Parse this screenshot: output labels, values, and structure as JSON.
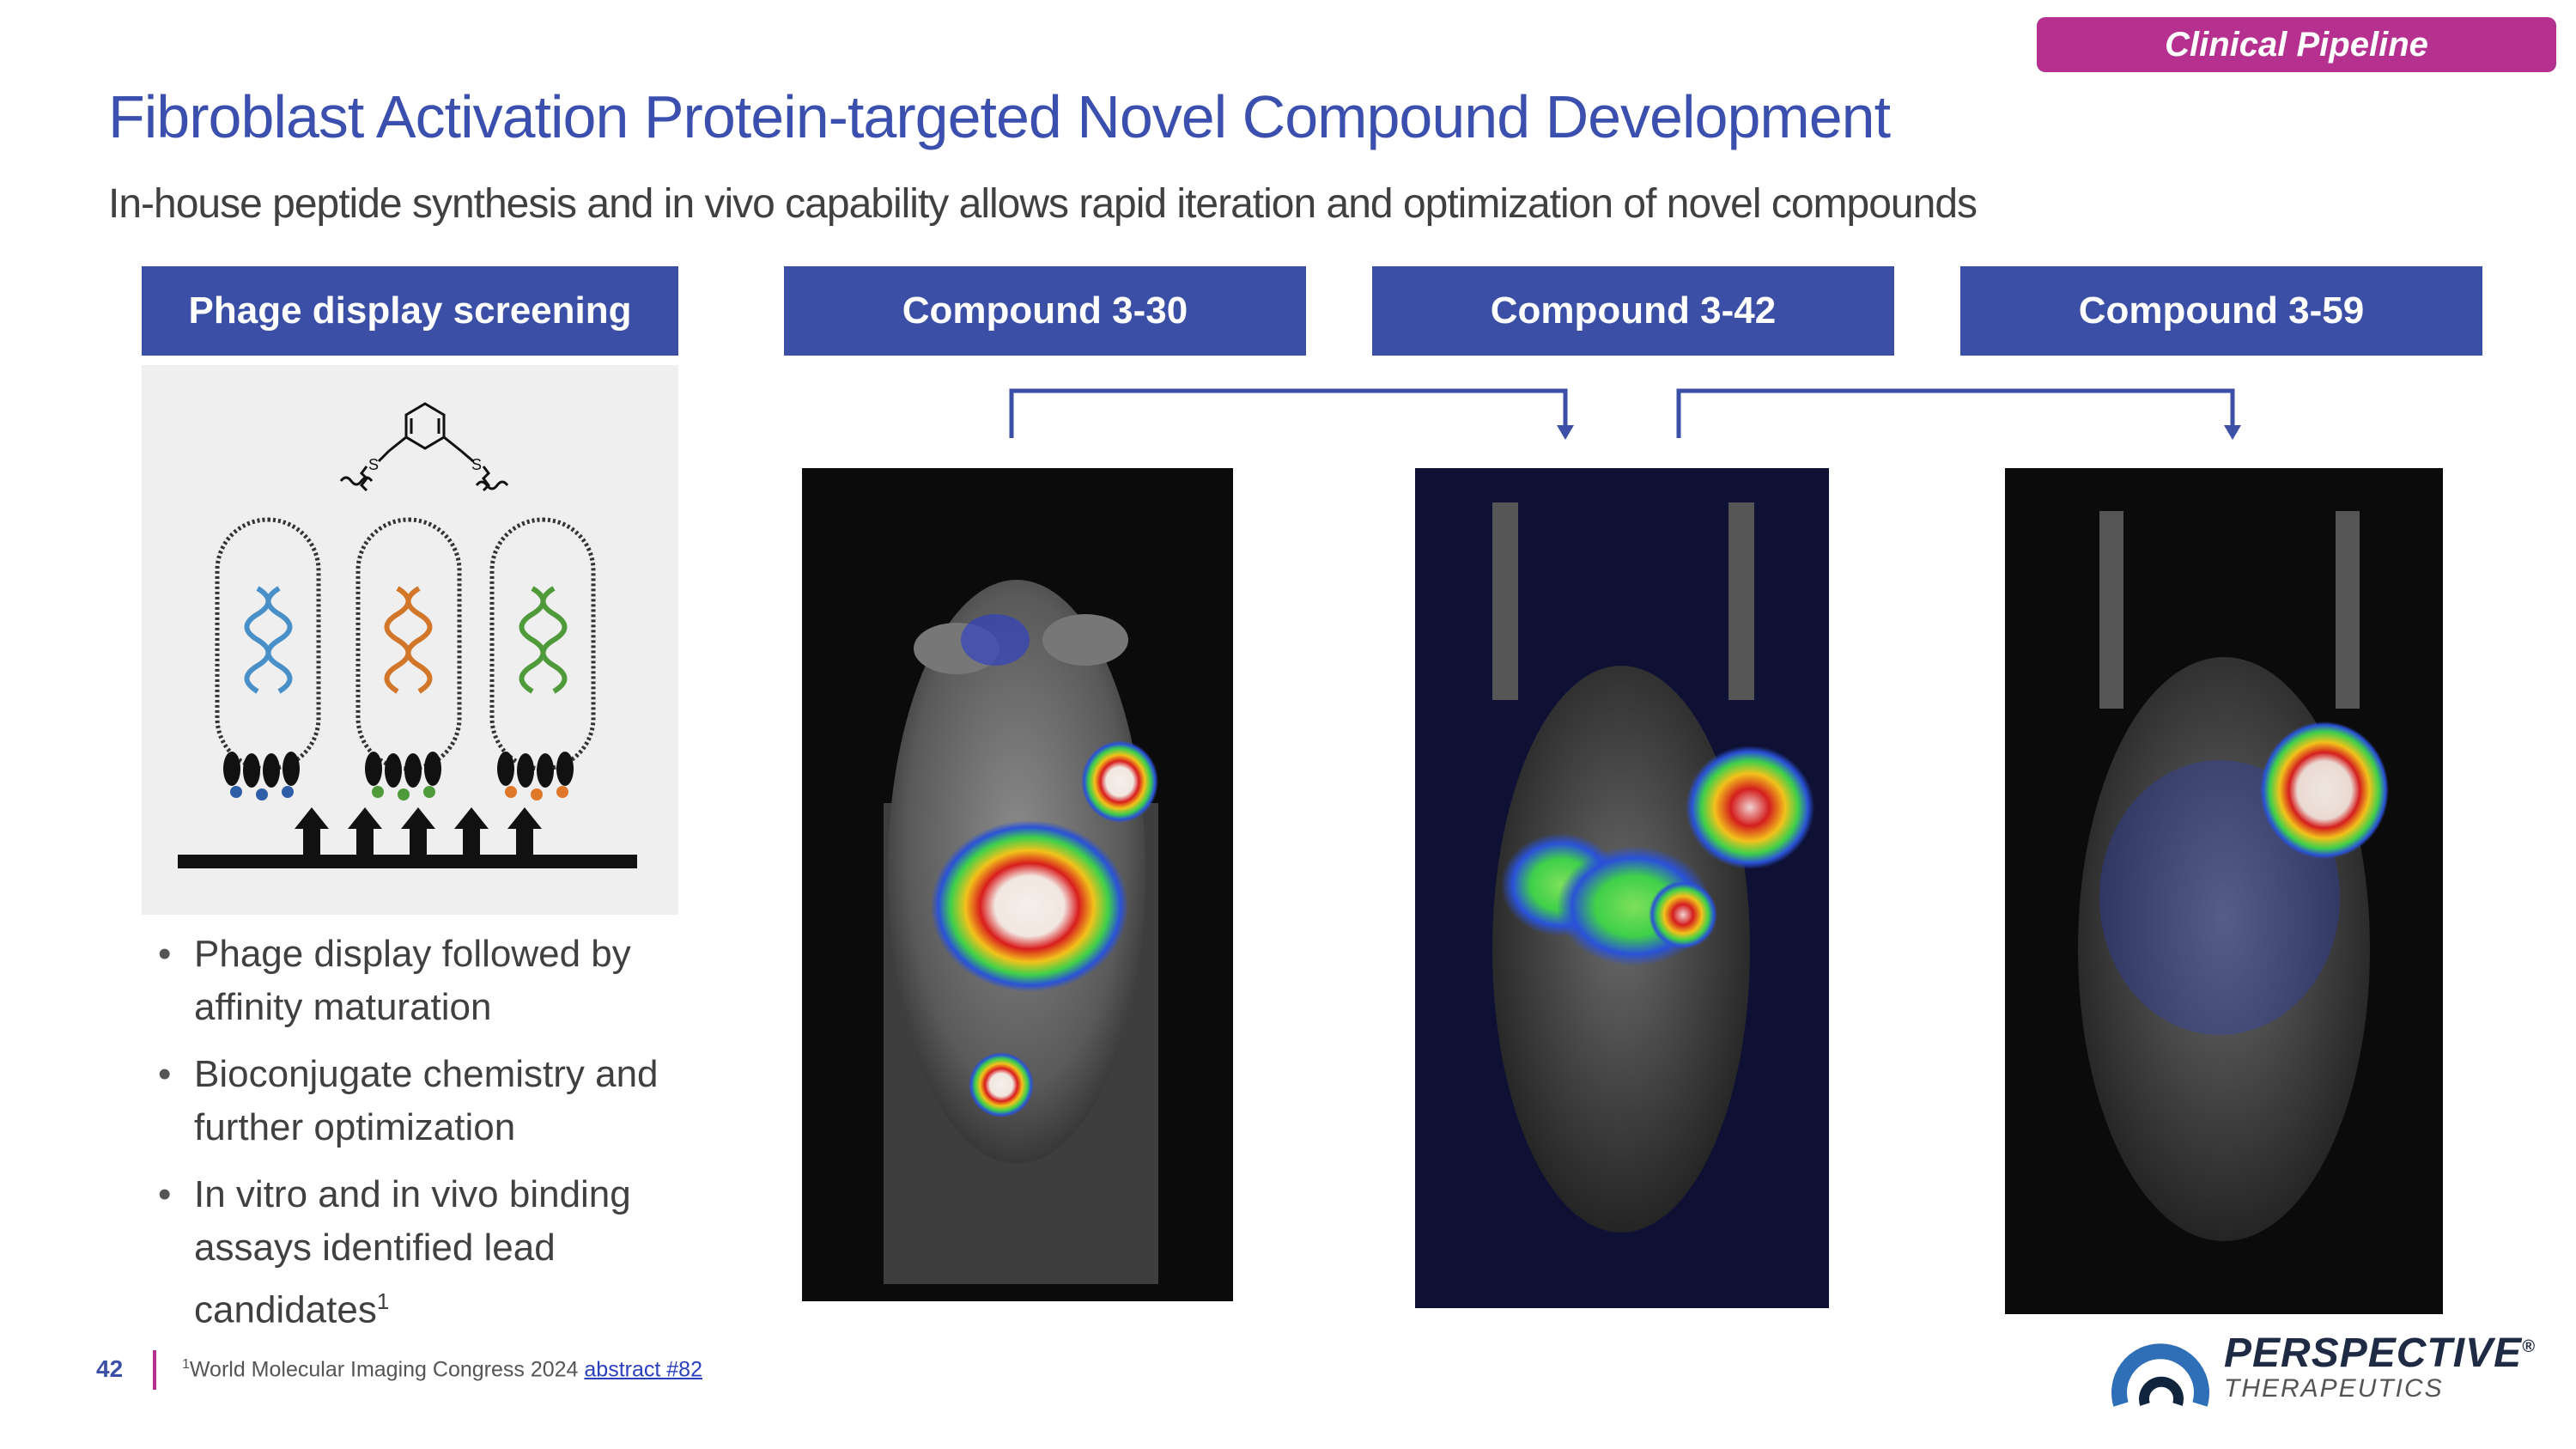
{
  "badge": "Clinical Pipeline",
  "title": "Fibroblast Activation Protein-targeted Novel Compound Development",
  "subtitle": "In-house peptide synthesis and in vivo capability allows rapid iteration and optimization of novel compounds",
  "columns": [
    {
      "label": "Phage display screening"
    },
    {
      "label": "Compound 3-30"
    },
    {
      "label": "Compound 3-42"
    },
    {
      "label": "Compound 3-59"
    }
  ],
  "bullets": [
    "Phage display followed by affinity maturation",
    "Bioconjugate chemistry and further optimization",
    "In vitro and in vivo binding assays identified lead candidates"
  ],
  "bullet_superscript": "1",
  "footer": {
    "page_number": "42",
    "footnote_mark": "1",
    "footnote_text": "World Molecular Imaging Congress 2024 ",
    "footnote_link": "abstract #82"
  },
  "logo": {
    "name": "PERSPECTIVE",
    "registered": "®",
    "tagline": "THERAPEUTICS"
  },
  "colors": {
    "title": "#3a4fae",
    "header_bg": "#3a4fa5",
    "badge_bg": "#b5308f",
    "helix_colors": [
      "#4a90c8",
      "#d2772a",
      "#4f9a3a"
    ]
  }
}
